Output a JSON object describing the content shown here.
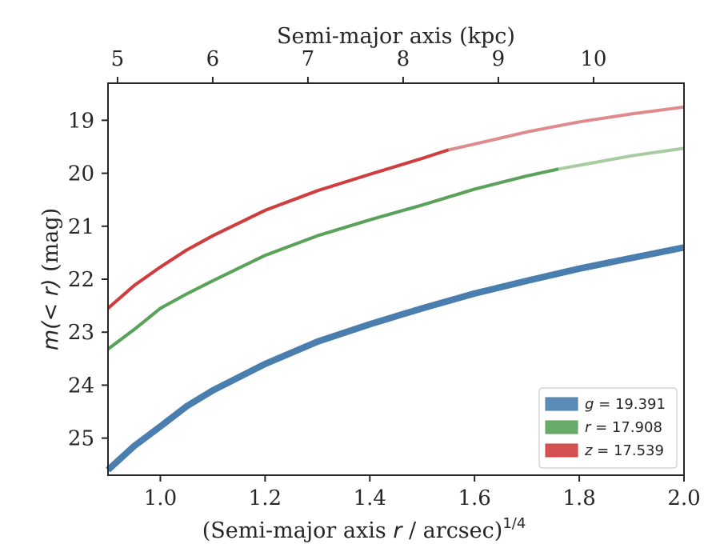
{
  "chart_data": {
    "type": "line",
    "top_axis": {
      "label": "Semi-major axis (kpc)",
      "ticks": [
        5,
        6,
        7,
        8,
        9,
        10
      ],
      "tick_labels": [
        "5",
        "6",
        "7",
        "8",
        "9",
        "10"
      ]
    },
    "x_axis": {
      "label_prefix": "(Semi-major axis ",
      "label_var": "r",
      "label_suffix": " / arcsec)",
      "label_exponent": "1/4",
      "range": [
        0.9,
        2.0
      ],
      "ticks": [
        1.0,
        1.2,
        1.4,
        1.6,
        1.8,
        2.0
      ],
      "tick_labels": [
        "1.0",
        "1.2",
        "1.4",
        "1.6",
        "1.8",
        "2.0"
      ]
    },
    "y_axis": {
      "label_italic": "m(< r)",
      "label_rest": " (mag)",
      "range": [
        25.7,
        18.3
      ],
      "inverted": true,
      "ticks": [
        19,
        20,
        21,
        22,
        23,
        24,
        25
      ],
      "tick_labels": [
        "19",
        "20",
        "21",
        "22",
        "23",
        "24",
        "25"
      ]
    },
    "kpc_per_arcsec_quarter": {
      "x_ref": [
        0.9,
        2.0
      ],
      "kpc_ref": [
        4.9,
        10.95
      ]
    },
    "series": [
      {
        "name": "g",
        "legend_var": "g",
        "legend_value": "= 19.391",
        "color": "#4a7eae",
        "faded_color": "#4a7eae",
        "stroke": 8,
        "solid_until": 2.0,
        "x": [
          0.9,
          0.95,
          1.0,
          1.05,
          1.1,
          1.2,
          1.3,
          1.4,
          1.5,
          1.6,
          1.7,
          1.8,
          1.9,
          2.0
        ],
        "y": [
          25.6,
          25.15,
          24.78,
          24.4,
          24.1,
          23.6,
          23.18,
          22.85,
          22.55,
          22.27,
          22.03,
          21.8,
          21.6,
          21.4
        ]
      },
      {
        "name": "r",
        "legend_var": "r",
        "legend_value": "= 17.908",
        "color": "#5aa15a",
        "faded_color": "#a6cc9f",
        "stroke": 4,
        "solid_until": 1.76,
        "x": [
          0.9,
          0.95,
          1.0,
          1.05,
          1.1,
          1.2,
          1.3,
          1.4,
          1.5,
          1.6,
          1.7,
          1.76,
          1.8,
          1.9,
          2.0
        ],
        "y": [
          23.32,
          22.95,
          22.55,
          22.28,
          22.03,
          21.55,
          21.18,
          20.88,
          20.6,
          20.3,
          20.05,
          19.92,
          19.85,
          19.67,
          19.53
        ]
      },
      {
        "name": "z",
        "legend_var": "z",
        "legend_value": "= 17.539",
        "color": "#cf3d3f",
        "faded_color": "#df8a8c",
        "stroke": 4,
        "solid_until": 1.55,
        "x": [
          0.9,
          0.95,
          1.0,
          1.05,
          1.1,
          1.2,
          1.3,
          1.4,
          1.5,
          1.55,
          1.6,
          1.7,
          1.8,
          1.9,
          2.0
        ],
        "y": [
          22.55,
          22.12,
          21.77,
          21.45,
          21.18,
          20.7,
          20.33,
          20.02,
          19.72,
          19.56,
          19.45,
          19.22,
          19.03,
          18.88,
          18.75
        ]
      }
    ],
    "legend_position": "lower-right",
    "grid": false
  }
}
